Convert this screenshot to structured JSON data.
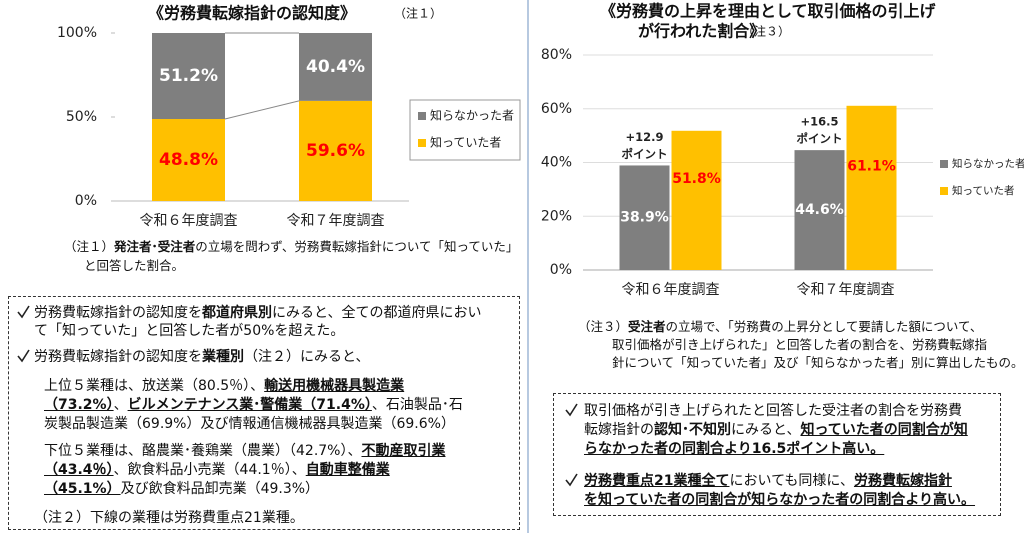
{
  "chart_data": [
    {
      "type": "stacked_bar",
      "title": "《労務費転嫁指針の認知度》",
      "title_note": "（注１）",
      "categories": [
        "令和６年度調査",
        "令和７年度調査"
      ],
      "series": [
        {
          "name": "知っていた者",
          "color": "#ffc000",
          "label_color": "#ff0000",
          "values": [
            48.8,
            59.6
          ],
          "value_labels": [
            "48.8%",
            "59.6%"
          ]
        },
        {
          "name": "知らなかった者",
          "color": "#7f7f7f",
          "label_color": "#ffffff",
          "values": [
            51.2,
            40.4
          ],
          "value_labels": [
            "51.2%",
            "40.4%"
          ]
        }
      ],
      "ylim": [
        0,
        100
      ],
      "yticks": [
        {
          "value": 0,
          "label": "0%"
        },
        {
          "value": 50,
          "label": "50%"
        },
        {
          "value": 100,
          "label": "100%"
        }
      ],
      "grid": false,
      "legend": "right"
    },
    {
      "type": "bar",
      "title": [
        "《労務費の上昇を理由として取引価格の引上げ",
        "が行われた割合》"
      ],
      "title_note": "（注３）",
      "categories": [
        "令和６年度調査",
        "令和７年度調査"
      ],
      "series": [
        {
          "name": "知らなかった者",
          "color": "#7f7f7f",
          "label_color": "#ffffff",
          "values": [
            38.9,
            44.6
          ],
          "value_labels": [
            "38.9%",
            "44.6%"
          ]
        },
        {
          "name": "知っていた者",
          "color": "#ffc000",
          "label_color": "#ff0000",
          "values": [
            51.8,
            61.1
          ],
          "value_labels": [
            "51.8%",
            "61.1%"
          ]
        }
      ],
      "annotations": [
        [
          "+12.9",
          "ポイント"
        ],
        [
          "+16.5",
          "ポイント"
        ]
      ],
      "ylim": [
        0,
        80
      ],
      "yticks": [
        {
          "value": 0,
          "label": "0%"
        },
        {
          "value": 20,
          "label": "20%"
        },
        {
          "value": 40,
          "label": "40%"
        },
        {
          "value": 60,
          "label": "60%"
        },
        {
          "value": 80,
          "label": "80%"
        }
      ],
      "grid": true,
      "legend": "right"
    }
  ],
  "notes": {
    "note1": [
      [
        "（注１）",
        {
          "text": "発注者･受注者",
          "style": "b"
        },
        "の立場を問わず、労務費転嫁指針について「知っていた」"
      ],
      [
        "と回答した割合。"
      ]
    ],
    "note3": [
      [
        "（注３）",
        {
          "text": "受注者",
          "style": "b"
        },
        "の立場で、「労務費の上昇分として要請した額について、"
      ],
      [
        "取引価格が引き上げられた」と回答した者の割合を、労務費転嫁指"
      ],
      [
        "針について「知っていた者」及び「知らなかった者」別に算出したもの。"
      ]
    ]
  },
  "boxes": {
    "left": [
      [
        "労務費転嫁指針の認知度を",
        {
          "text": "都道府県別",
          "style": "b"
        },
        "にみると、全ての都道府県におい"
      ],
      [
        "て「知っていた」と回答した者が50%を超えた。"
      ],
      [
        "労務費転嫁指針の認知度を",
        {
          "text": "業種別",
          "style": "b"
        },
        "（注２）にみると、"
      ],
      [
        "上位５業種は、放送業（80.5％）、",
        {
          "text": "輸送用機械器具製造業",
          "style": "bu"
        }
      ],
      [
        {
          "text": "（73.2%）",
          "style": "bu"
        },
        "、",
        {
          "text": "ビルメンテナンス業･警備業（71.4%）",
          "style": "bu"
        },
        "、石油製品･石"
      ],
      [
        "炭製品製造業（69.9%）及び情報通信機械器具製造業（69.6%）"
      ],
      [
        "下位５業種は、酪農業･養鶏業（農業）（42.7%）、",
        {
          "text": "不動産取引業",
          "style": "bu"
        }
      ],
      [
        {
          "text": "（43.4％）",
          "style": "bu"
        },
        "、飲食料品小売業（44.1％）、",
        {
          "text": "自動車整備業",
          "style": "bu"
        }
      ],
      [
        {
          "text": "（45.1%）",
          "style": "bu"
        },
        "及び飲食料品卸売業（49.3%）"
      ],
      [
        "（注２）下線の業種は労務費重点21業種。"
      ]
    ],
    "right": [
      [
        "取引価格が引き上げられたと回答した受注者の割合を労務費"
      ],
      [
        "転嫁指針の",
        {
          "text": "認知･不知別",
          "style": "b"
        },
        "にみると、",
        {
          "text": "知っていた者の同割合が知",
          "style": "bu"
        }
      ],
      [
        {
          "text": "らなかった者の同割合より16.5ポイント高い。",
          "style": "bu"
        }
      ],
      [
        {
          "text": "労務費重点21業種全て",
          "style": "bu"
        },
        "においても同様に、",
        {
          "text": "労務費転嫁指針",
          "style": "bu"
        }
      ],
      [
        {
          "text": "を知っていた者の同割合が知らなかった者の同割合より高い。",
          "style": "bu"
        }
      ]
    ]
  }
}
